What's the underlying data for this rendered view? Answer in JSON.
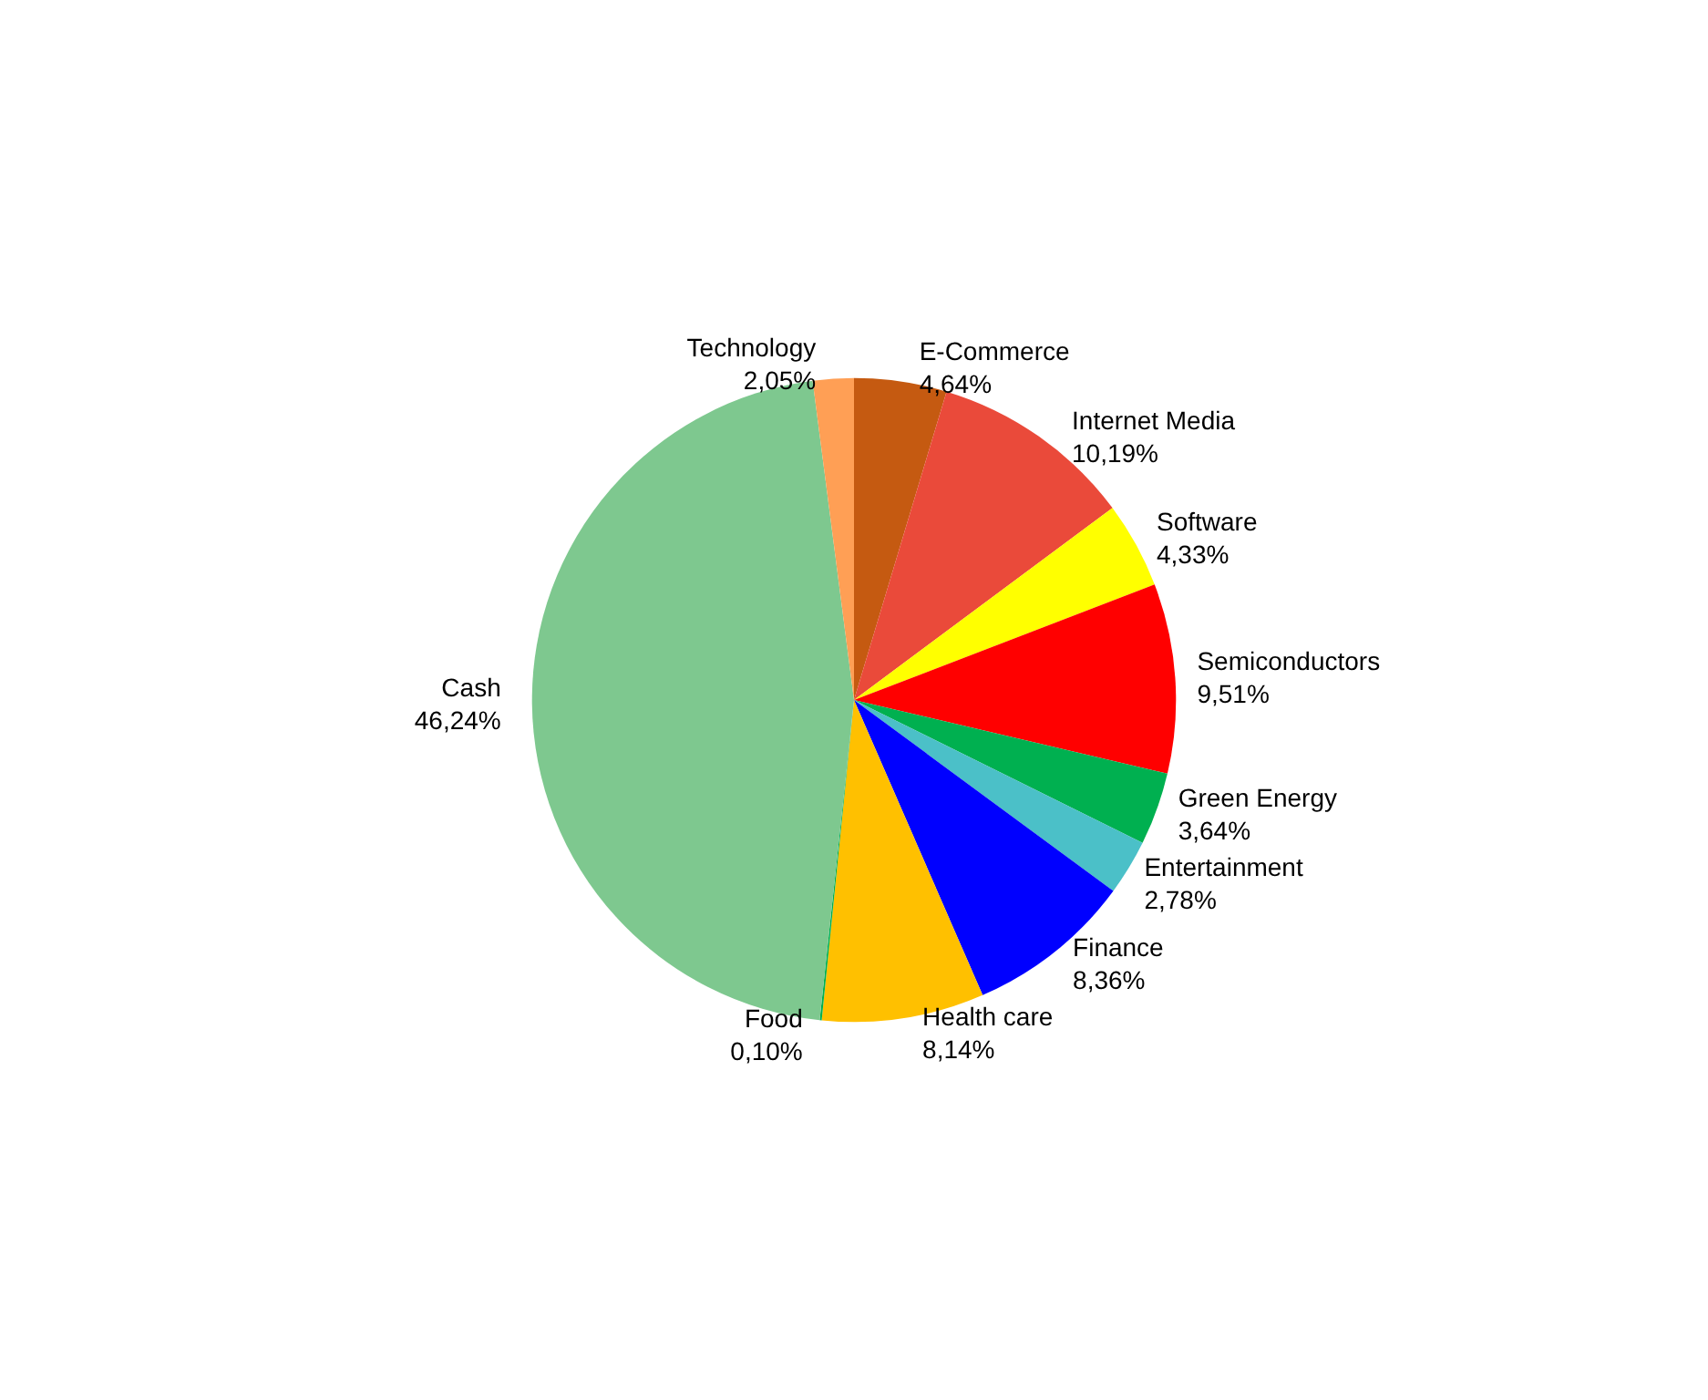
{
  "chart_data": {
    "type": "pie",
    "categories": [
      "E-Commerce",
      "Internet Media",
      "Software",
      "Semiconductors",
      "Green Energy",
      "Entertainment",
      "Finance",
      "Health care",
      "Food",
      "Cash",
      "Technology"
    ],
    "values": [
      4.64,
      10.19,
      4.33,
      9.51,
      3.64,
      2.78,
      8.36,
      8.14,
      0.1,
      46.24,
      2.05
    ],
    "value_labels": [
      "4,64%",
      "10,19%",
      "4,33%",
      "9,51%",
      "3,64%",
      "2,78%",
      "8,36%",
      "8,14%",
      "0,10%",
      "46,24%",
      "2,05%"
    ],
    "colors": [
      "#c55a11",
      "#ea4a3a",
      "#ffff00",
      "#ff0000",
      "#00b050",
      "#4bc0c8",
      "#0000ff",
      "#ffc000",
      "#00b050",
      "#7ec88f",
      "#ff9f55"
    ],
    "legend": false
  }
}
